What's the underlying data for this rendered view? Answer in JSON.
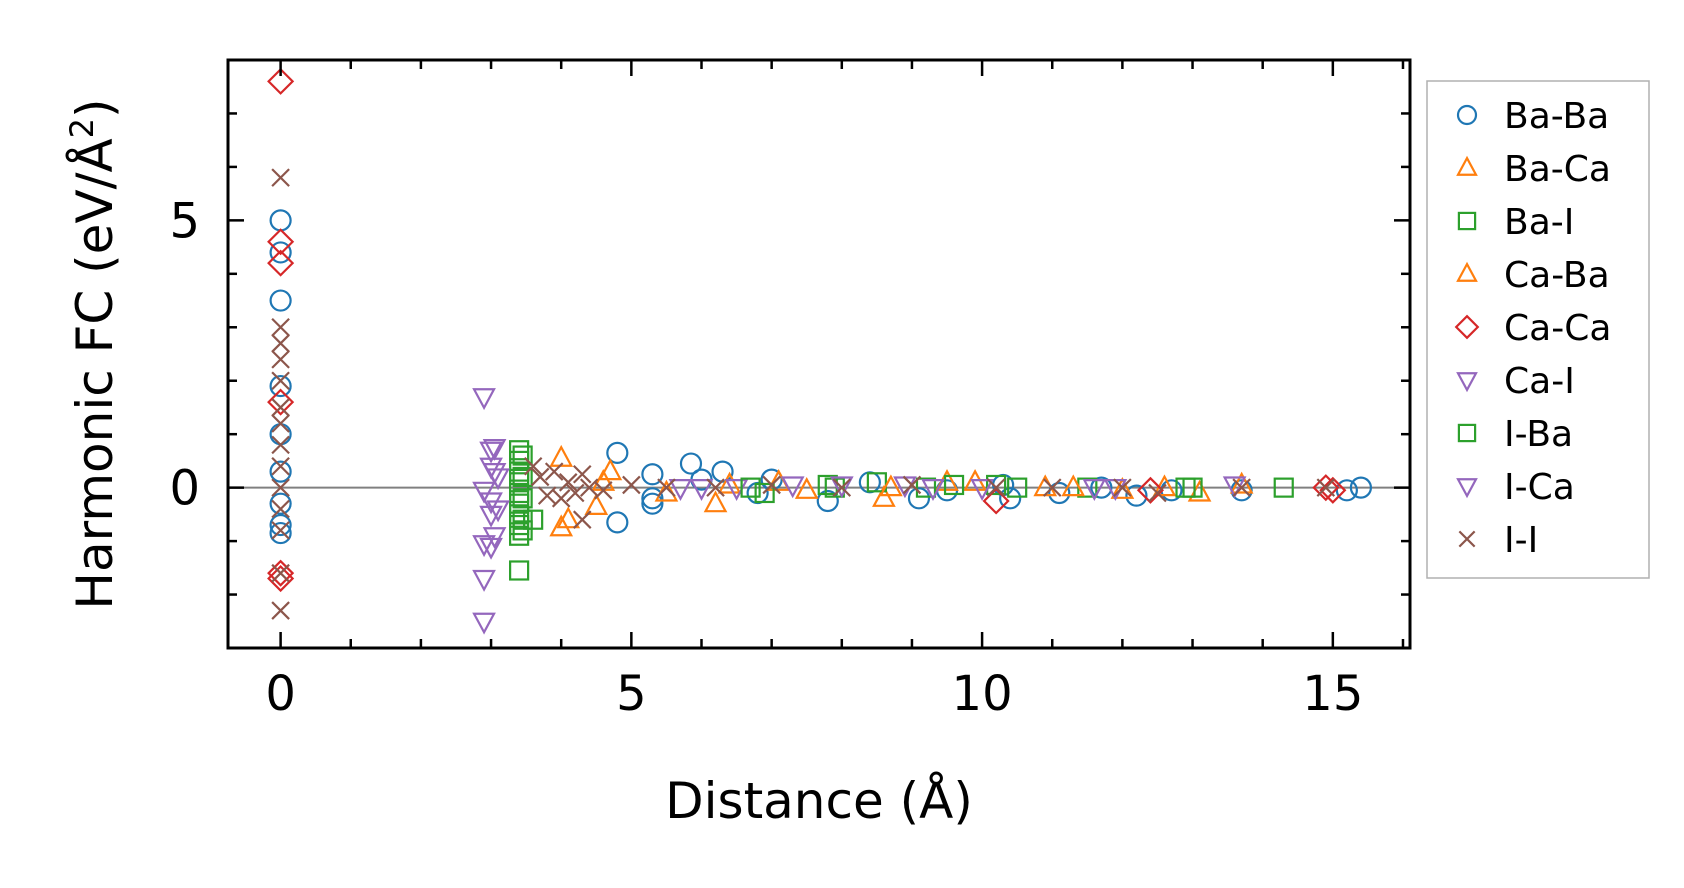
{
  "chart_data": {
    "type": "scatter",
    "title": "",
    "xlabel": "Distance (Å)",
    "ylabel": "Harmonic FC (eV/Å",
    "ylabel_superscript": "2",
    "ylabel_close": ")",
    "xlim": [
      -0.75,
      16.1
    ],
    "ylim": [
      -3.0,
      8.0
    ],
    "xticks": [
      0,
      5,
      10,
      15
    ],
    "xtick_labels": [
      "0",
      "5",
      "10",
      "15"
    ],
    "xminor_step": 1,
    "yticks": [
      0,
      5
    ],
    "ytick_labels": [
      "0",
      "5"
    ],
    "yminor_step": 1,
    "zero_line": true,
    "grid": false,
    "legend_position": "outside-right",
    "series": [
      {
        "name": "Ba-Ba",
        "marker": "circle",
        "color": "#1f77b4",
        "points": [
          [
            0,
            5.0
          ],
          [
            0,
            4.4
          ],
          [
            0,
            3.5
          ],
          [
            0,
            1.9
          ],
          [
            0,
            1.0
          ],
          [
            0,
            0.3
          ],
          [
            0,
            -0.3
          ],
          [
            0,
            -0.7
          ],
          [
            0,
            -0.85
          ],
          [
            5.3,
            0.25
          ],
          [
            5.3,
            -0.2
          ],
          [
            5.3,
            -0.3
          ],
          [
            4.8,
            0.65
          ],
          [
            4.8,
            -0.65
          ],
          [
            5.85,
            0.45
          ],
          [
            6.3,
            0.3
          ],
          [
            6.0,
            0.15
          ],
          [
            6.8,
            -0.1
          ],
          [
            7.0,
            0.15
          ],
          [
            7.8,
            -0.25
          ],
          [
            8.4,
            0.1
          ],
          [
            9.1,
            -0.2
          ],
          [
            9.5,
            -0.05
          ],
          [
            10.3,
            0.05
          ],
          [
            10.4,
            -0.2
          ],
          [
            11.1,
            -0.1
          ],
          [
            11.7,
            0.0
          ],
          [
            12.2,
            -0.15
          ],
          [
            12.7,
            -0.05
          ],
          [
            13.7,
            -0.05
          ],
          [
            15.2,
            -0.05
          ],
          [
            15.4,
            0.0
          ]
        ]
      },
      {
        "name": "Ba-Ca",
        "marker": "triangle-up",
        "color": "#ff7f0e",
        "points": [
          [
            4.0,
            0.55
          ],
          [
            4.0,
            -0.75
          ],
          [
            4.5,
            -0.35
          ],
          [
            4.7,
            0.3
          ],
          [
            6.2,
            -0.3
          ],
          [
            7.1,
            0.1
          ],
          [
            8.6,
            -0.2
          ],
          [
            9.5,
            0.1
          ],
          [
            10.9,
            0.0
          ],
          [
            12.0,
            -0.05
          ],
          [
            13.1,
            -0.1
          ],
          [
            13.7,
            0.05
          ]
        ]
      },
      {
        "name": "Ba-I",
        "marker": "square",
        "color": "#2ca02c",
        "points": [
          [
            3.4,
            -1.55
          ],
          [
            3.4,
            0.7
          ],
          [
            3.4,
            0.5
          ],
          [
            3.4,
            0.3
          ],
          [
            3.4,
            0.1
          ],
          [
            3.4,
            -0.1
          ],
          [
            3.4,
            -0.3
          ],
          [
            3.4,
            -0.5
          ],
          [
            3.4,
            -0.7
          ],
          [
            3.4,
            -0.9
          ],
          [
            3.6,
            -0.6
          ],
          [
            6.9,
            -0.1
          ],
          [
            7.8,
            0.05
          ],
          [
            8.5,
            0.1
          ],
          [
            9.2,
            0.0
          ],
          [
            10.2,
            0.05
          ],
          [
            11.5,
            0.0
          ],
          [
            13.0,
            0.0
          ],
          [
            14.3,
            0.0
          ]
        ]
      },
      {
        "name": "Ca-Ba",
        "marker": "triangle-up",
        "color": "#ff7f0e",
        "points": [
          [
            4.1,
            -0.6
          ],
          [
            4.6,
            0.1
          ],
          [
            5.5,
            -0.1
          ],
          [
            6.4,
            0.05
          ],
          [
            7.5,
            -0.05
          ],
          [
            8.7,
            0.0
          ],
          [
            9.9,
            0.1
          ],
          [
            11.3,
            0.0
          ],
          [
            12.6,
            0.0
          ]
        ]
      },
      {
        "name": "Ca-Ca",
        "marker": "diamond",
        "color": "#d62728",
        "points": [
          [
            0,
            7.6
          ],
          [
            0,
            4.6
          ],
          [
            0,
            4.2
          ],
          [
            0,
            1.6
          ],
          [
            0,
            -1.6
          ],
          [
            0,
            -1.7
          ],
          [
            10.2,
            -0.25
          ],
          [
            12.4,
            -0.05
          ],
          [
            14.9,
            0.0
          ],
          [
            15.0,
            -0.05
          ]
        ]
      },
      {
        "name": "Ca-I",
        "marker": "triangle-down",
        "color": "#9467bd",
        "points": [
          [
            2.9,
            1.7
          ],
          [
            2.9,
            -0.05
          ],
          [
            2.9,
            -1.05
          ],
          [
            2.9,
            -1.7
          ],
          [
            2.9,
            -2.5
          ],
          [
            3.0,
            0.7
          ],
          [
            3.0,
            0.4
          ],
          [
            3.0,
            -0.25
          ],
          [
            3.0,
            -0.5
          ],
          [
            3.0,
            -1.1
          ],
          [
            3.1,
            0.2
          ],
          [
            5.7,
            0.0
          ],
          [
            6.5,
            0.0
          ],
          [
            7.3,
            0.05
          ],
          [
            8.9,
            0.05
          ],
          [
            10.0,
            0.0
          ],
          [
            11.9,
            0.0
          ]
        ]
      },
      {
        "name": "I-Ba",
        "marker": "square",
        "color": "#2ca02c",
        "points": [
          [
            3.45,
            0.6
          ],
          [
            3.45,
            0.2
          ],
          [
            3.45,
            -0.2
          ],
          [
            3.45,
            -0.6
          ],
          [
            3.45,
            -0.8
          ],
          [
            6.7,
            0.0
          ],
          [
            7.9,
            0.0
          ],
          [
            9.6,
            0.05
          ],
          [
            10.5,
            0.0
          ],
          [
            12.9,
            0.0
          ]
        ]
      },
      {
        "name": "I-Ca",
        "marker": "triangle-down",
        "color": "#9467bd",
        "points": [
          [
            3.05,
            0.75
          ],
          [
            3.05,
            -0.9
          ],
          [
            3.1,
            -0.4
          ],
          [
            3.05,
            0.3
          ],
          [
            6.0,
            0.0
          ],
          [
            8.0,
            0.05
          ],
          [
            9.3,
            0.0
          ],
          [
            11.6,
            0.0
          ],
          [
            13.6,
            0.05
          ]
        ]
      },
      {
        "name": "I-I",
        "marker": "x",
        "color": "#8c564b",
        "points": [
          [
            0,
            5.8
          ],
          [
            0,
            3.0
          ],
          [
            0,
            2.7
          ],
          [
            0,
            2.4
          ],
          [
            0,
            2.0
          ],
          [
            0,
            1.5
          ],
          [
            0,
            1.2
          ],
          [
            0,
            0.8
          ],
          [
            0,
            0.4
          ],
          [
            0,
            0.0
          ],
          [
            0,
            -0.4
          ],
          [
            0,
            -0.8
          ],
          [
            0,
            -1.6
          ],
          [
            0,
            -2.3
          ],
          [
            3.6,
            0.4
          ],
          [
            3.7,
            0.2
          ],
          [
            3.8,
            -0.15
          ],
          [
            3.9,
            0.3
          ],
          [
            4.0,
            -0.2
          ],
          [
            4.1,
            0.1
          ],
          [
            4.2,
            -0.1
          ],
          [
            4.3,
            0.25
          ],
          [
            4.3,
            -0.6
          ],
          [
            4.4,
            0.0
          ],
          [
            4.6,
            -0.05
          ],
          [
            5.0,
            0.05
          ],
          [
            5.5,
            0.0
          ],
          [
            6.2,
            0.0
          ],
          [
            7.0,
            0.05
          ],
          [
            8.0,
            0.0
          ],
          [
            9.0,
            0.05
          ],
          [
            10.2,
            0.0
          ],
          [
            11.0,
            0.0
          ],
          [
            12.0,
            0.0
          ],
          [
            12.5,
            -0.1
          ],
          [
            13.7,
            0.0
          ],
          [
            14.9,
            0.0
          ]
        ]
      }
    ]
  }
}
